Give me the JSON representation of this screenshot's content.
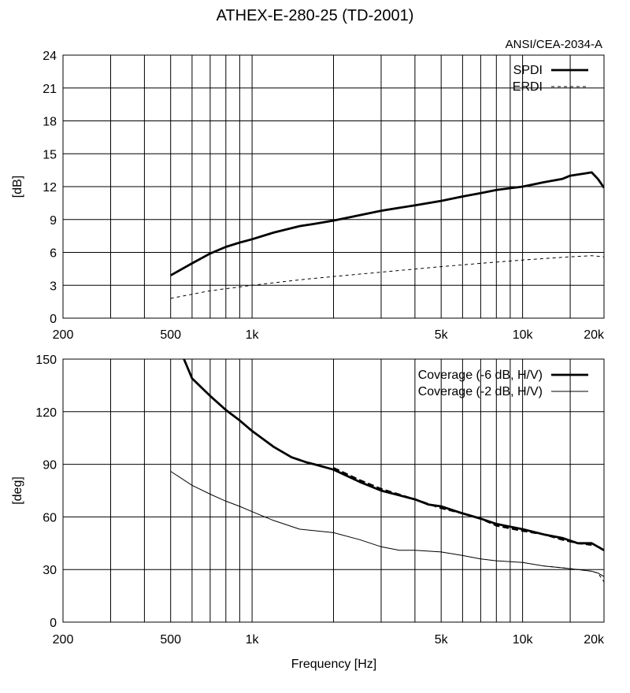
{
  "title": "ATHEX-E-280-25 (TD-2001)",
  "standard_label": "ANSI/CEA-2034-A",
  "xlabel": "Frequency [Hz]",
  "x_tick_labels": [
    {
      "value": 200,
      "label": "200"
    },
    {
      "value": 500,
      "label": "500"
    },
    {
      "value": 1000,
      "label": "1k"
    },
    {
      "value": 5000,
      "label": "5k"
    },
    {
      "value": 10000,
      "label": "10k"
    },
    {
      "value": 20000,
      "label": "20k"
    }
  ],
  "colors": {
    "line": "#000000",
    "grid": "#000000",
    "background": "#ffffff"
  },
  "chart_data": [
    {
      "type": "line",
      "x_scale": "log",
      "xlim": [
        200,
        20000
      ],
      "ylim": [
        0,
        24
      ],
      "ylabel": "[dB]",
      "y_ticks": [
        0,
        3,
        6,
        9,
        12,
        15,
        18,
        21,
        24
      ],
      "grid": true,
      "legend_position": "top-right",
      "series": [
        {
          "name": "SPDI",
          "style": "thick-solid",
          "x": [
            500,
            600,
            700,
            800,
            900,
            1000,
            1200,
            1500,
            1700,
            2000,
            2500,
            3000,
            4000,
            5000,
            6000,
            7000,
            8000,
            10000,
            12000,
            14000,
            15000,
            17000,
            18000,
            19000,
            20000
          ],
          "y": [
            3.9,
            5.0,
            5.9,
            6.5,
            6.9,
            7.2,
            7.8,
            8.4,
            8.6,
            8.9,
            9.4,
            9.8,
            10.3,
            10.7,
            11.1,
            11.4,
            11.7,
            12.0,
            12.4,
            12.7,
            13.0,
            13.2,
            13.3,
            12.7,
            11.9
          ]
        },
        {
          "name": "ERDI",
          "style": "thin-dashed",
          "x": [
            500,
            700,
            1000,
            1500,
            2000,
            3000,
            5000,
            7000,
            10000,
            15000,
            18000,
            20000
          ],
          "y": [
            1.8,
            2.5,
            3.0,
            3.5,
            3.8,
            4.2,
            4.7,
            5.0,
            5.3,
            5.6,
            5.7,
            5.6
          ]
        }
      ]
    },
    {
      "type": "line",
      "x_scale": "log",
      "xlim": [
        200,
        20000
      ],
      "ylim": [
        0,
        150
      ],
      "ylabel": "[deg]",
      "y_ticks": [
        0,
        30,
        60,
        90,
        120,
        150
      ],
      "grid": true,
      "legend_position": "top-right",
      "series": [
        {
          "name": "Coverage (-6 dB, H/V)",
          "style": "thick-solid",
          "x": [
            560,
            600,
            700,
            800,
            900,
            1000,
            1200,
            1400,
            1600,
            1700,
            2000,
            2500,
            3000,
            4000,
            4500,
            5000,
            6000,
            7000,
            8000,
            10000,
            12000,
            14000,
            16000,
            17000,
            18000,
            19000,
            20000
          ],
          "y": [
            150,
            139,
            129,
            121,
            115,
            109,
            100,
            94,
            91,
            90,
            87,
            80,
            75,
            70,
            67,
            66,
            62,
            59,
            56,
            53,
            50,
            48,
            45,
            45,
            45,
            43,
            41
          ]
        },
        {
          "name": "Coverage (-6 dB, H/V)",
          "style": "thick-dashed",
          "x": [
            2000,
            2500,
            3000,
            4000,
            5000,
            6000,
            7000,
            8000,
            10000,
            12000,
            14000,
            16000,
            18000
          ],
          "y": [
            88,
            81,
            76,
            70,
            65,
            62,
            59,
            55,
            52,
            50,
            47,
            45,
            44
          ]
        },
        {
          "name": "Coverage (-2 dB, H/V)",
          "style": "thin-solid",
          "x": [
            500,
            600,
            700,
            800,
            900,
            1000,
            1200,
            1500,
            2000,
            2500,
            3000,
            3500,
            4000,
            5000,
            6000,
            7000,
            8000,
            10000,
            12000,
            14000,
            16000,
            18000,
            19000,
            20000
          ],
          "y": [
            86,
            78,
            73,
            69,
            66,
            63,
            58,
            53,
            51,
            47,
            43,
            41,
            41,
            40,
            38,
            36,
            35,
            34,
            32,
            31,
            30,
            29,
            28,
            26
          ]
        },
        {
          "name": "Coverage (-2 dB, H/V)",
          "style": "thin-dashed",
          "x": [
            12000,
            14000,
            16000,
            18000,
            19000,
            20000
          ],
          "y": [
            32,
            31,
            30,
            29,
            28,
            23
          ]
        }
      ]
    }
  ]
}
